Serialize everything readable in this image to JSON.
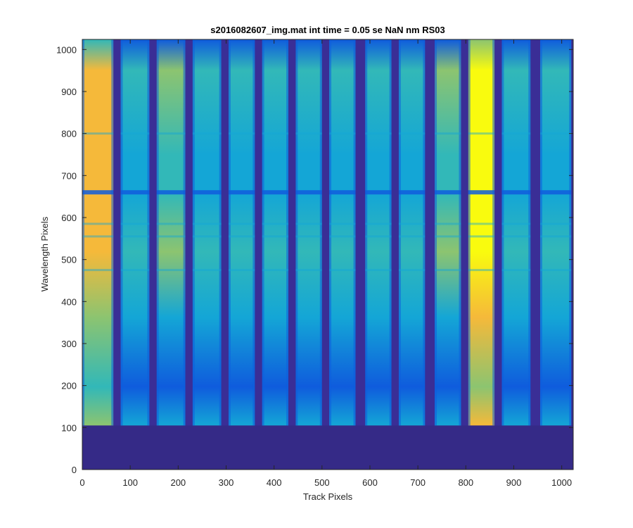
{
  "chart_data": {
    "type": "heatmap",
    "title": "s2016082607_img.mat int time = 0.05 se  NaN nm RS03",
    "xlabel": "Track Pixels",
    "ylabel": "Wavelength Pixels",
    "xlim": [
      0,
      1024
    ],
    "ylim": [
      0,
      1024
    ],
    "xticks": [
      0,
      100,
      200,
      300,
      400,
      500,
      600,
      700,
      800,
      900,
      1000
    ],
    "yticks": [
      0,
      100,
      200,
      300,
      400,
      500,
      600,
      700,
      800,
      900,
      1000
    ],
    "colormap": "parula",
    "colors": {
      "background": "#352a87",
      "gap": "#3a2e96",
      "blue": "#0f5cdd",
      "cyan": "#14a6d6",
      "teal": "#32b8b8",
      "green": "#8cc470",
      "orange": "#f5b93a",
      "yellow": "#f9fb0e"
    },
    "signal_start_row": 105,
    "absorption_band_rows": [
      660,
      555,
      800,
      475,
      585
    ],
    "tracks": [
      {
        "x_start": 0,
        "x_end": 65,
        "level": 0.78
      },
      {
        "x_start": 80,
        "x_end": 140,
        "level": 0.4
      },
      {
        "x_start": 155,
        "x_end": 215,
        "level": 0.5
      },
      {
        "x_start": 230,
        "x_end": 290,
        "level": 0.47
      },
      {
        "x_start": 305,
        "x_end": 360,
        "level": 0.45
      },
      {
        "x_start": 375,
        "x_end": 430,
        "level": 0.44
      },
      {
        "x_start": 445,
        "x_end": 500,
        "level": 0.46
      },
      {
        "x_start": 515,
        "x_end": 570,
        "level": 0.44
      },
      {
        "x_start": 590,
        "x_end": 645,
        "level": 0.47
      },
      {
        "x_start": 660,
        "x_end": 715,
        "level": 0.45
      },
      {
        "x_start": 735,
        "x_end": 790,
        "level": 0.48
      },
      {
        "x_start": 805,
        "x_end": 860,
        "level": 1.0
      },
      {
        "x_start": 875,
        "x_end": 935,
        "level": 0.45
      },
      {
        "x_start": 955,
        "x_end": 1020,
        "level": 0.44
      }
    ]
  }
}
